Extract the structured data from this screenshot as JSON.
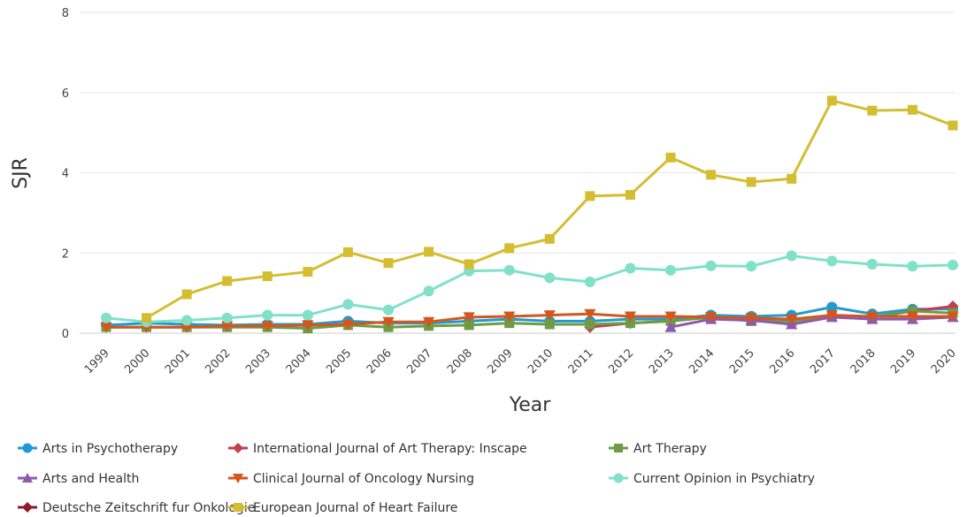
{
  "chart_data": {
    "type": "line",
    "title": "",
    "xlabel": "Year",
    "ylabel": "SJR",
    "ylim": [
      0,
      8
    ],
    "yticks": [
      0,
      2,
      4,
      6,
      8
    ],
    "grid": "horizontal",
    "legend_position": "bottom",
    "x": [
      "1999",
      "2000",
      "2001",
      "2002",
      "2003",
      "2004",
      "2005",
      "2006",
      "2007",
      "2008",
      "2009",
      "2010",
      "2011",
      "2012",
      "2013",
      "2014",
      "2015",
      "2016",
      "2017",
      "2018",
      "2019",
      "2020"
    ],
    "series": [
      {
        "name": "Arts in Psychotherapy",
        "color": "#1f9bd1",
        "marker": "circle",
        "values": [
          0.2,
          0.25,
          0.22,
          0.2,
          0.22,
          0.22,
          0.3,
          0.25,
          0.25,
          0.3,
          0.35,
          0.3,
          0.3,
          0.35,
          0.35,
          0.45,
          0.42,
          0.45,
          0.65,
          0.48,
          0.6,
          0.6
        ]
      },
      {
        "name": "International Journal of Art Therapy: Inscape",
        "color": "#c0404f",
        "marker": "diamond",
        "values": [
          null,
          null,
          null,
          null,
          null,
          null,
          null,
          null,
          null,
          null,
          null,
          null,
          0.15,
          0.25,
          0.3,
          0.4,
          0.35,
          0.3,
          0.45,
          0.4,
          0.55,
          0.67
        ]
      },
      {
        "name": "Art Therapy",
        "color": "#6f9b45",
        "marker": "square",
        "values": [
          0.15,
          0.15,
          0.15,
          0.15,
          0.15,
          0.12,
          0.2,
          0.15,
          0.18,
          0.2,
          0.25,
          0.22,
          0.22,
          0.25,
          0.3,
          0.4,
          0.3,
          0.3,
          0.42,
          0.4,
          0.55,
          0.5
        ]
      },
      {
        "name": "Arts and Health",
        "color": "#8e5ab0",
        "marker": "triangle-up",
        "values": [
          null,
          null,
          null,
          null,
          null,
          null,
          null,
          null,
          null,
          null,
          null,
          null,
          null,
          null,
          0.15,
          0.35,
          0.32,
          0.22,
          0.4,
          0.35,
          0.35,
          0.4
        ]
      },
      {
        "name": "Clinical Journal of Oncology Nursing",
        "color": "#d4561e",
        "marker": "triangle-down",
        "values": [
          0.15,
          0.15,
          0.15,
          0.18,
          0.18,
          0.2,
          0.22,
          0.28,
          0.28,
          0.4,
          0.42,
          0.45,
          0.48,
          0.42,
          0.42,
          0.4,
          0.38,
          0.35,
          0.45,
          0.42,
          0.42,
          0.42
        ]
      },
      {
        "name": "Current Opinion in Psychiatry",
        "color": "#80e1c8",
        "marker": "circle",
        "values": [
          0.38,
          0.28,
          0.32,
          0.38,
          0.45,
          0.45,
          0.72,
          0.58,
          1.05,
          1.55,
          1.57,
          1.38,
          1.28,
          1.62,
          1.57,
          1.68,
          1.67,
          1.93,
          1.8,
          1.72,
          1.67,
          1.7
        ]
      },
      {
        "name": "Deutsche Zeitschrift fur Onkologie",
        "color": "#8b1e2a",
        "marker": "diamond",
        "values": [
          null,
          null,
          null,
          null,
          null,
          null,
          null,
          null,
          null,
          null,
          null,
          null,
          null,
          null,
          null,
          null,
          null,
          null,
          null,
          null,
          null,
          null
        ]
      },
      {
        "name": "European Journal of Heart Failure",
        "color": "#d4bd31",
        "marker": "square",
        "values": [
          null,
          0.38,
          0.97,
          1.3,
          1.42,
          1.53,
          2.02,
          1.75,
          2.03,
          1.72,
          2.12,
          2.35,
          3.42,
          3.45,
          4.38,
          3.95,
          3.77,
          3.85,
          5.8,
          5.55,
          5.57,
          5.18
        ]
      }
    ]
  }
}
